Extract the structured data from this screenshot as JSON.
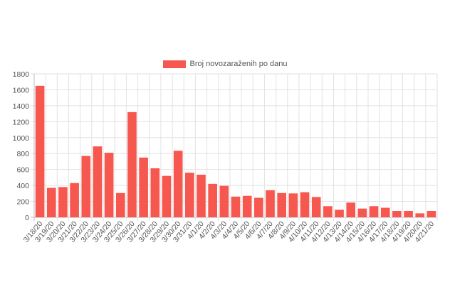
{
  "colors": {
    "bar": "#f6574e",
    "grid": "#e2e2e2",
    "axis": "#bdbdbd",
    "text": "#555555"
  },
  "chart_data": {
    "type": "bar",
    "title": "",
    "xlabel": "",
    "ylabel": "",
    "legend": "top-center",
    "grid": true,
    "ylim": [
      0,
      1800
    ],
    "yticks": [
      0,
      200,
      400,
      600,
      800,
      1000,
      1200,
      1400,
      1600,
      1800
    ],
    "categories": [
      "3/18/20",
      "3/19/20",
      "3/20/20",
      "3/21/20",
      "3/22/20",
      "3/23/20",
      "3/24/20",
      "3/25/20",
      "3/26/20",
      "3/27/20",
      "3/28/20",
      "3/29/20",
      "3/30/20",
      "3/31/20",
      "4/1/20",
      "4/2/20",
      "4/3/20",
      "4/4/20",
      "4/5/20",
      "4/6/20",
      "4/7/20",
      "4/8/20",
      "4/9/20",
      "4/10/20",
      "4/11/20",
      "4/12/20",
      "4/13/20",
      "4/14/20",
      "4/15/20",
      "4/16/20",
      "4/17/20",
      "4/18/20",
      "4/19/20",
      "4/20/20",
      "4/21/20"
    ],
    "series": [
      {
        "name": "Broj novozaraženih po danu",
        "values": [
          1650,
          370,
          380,
          430,
          770,
          890,
          810,
          305,
          1320,
          750,
          615,
          520,
          835,
          560,
          535,
          420,
          395,
          260,
          270,
          245,
          340,
          305,
          300,
          315,
          255,
          140,
          95,
          185,
          110,
          140,
          120,
          80,
          80,
          50,
          80
        ]
      }
    ]
  }
}
